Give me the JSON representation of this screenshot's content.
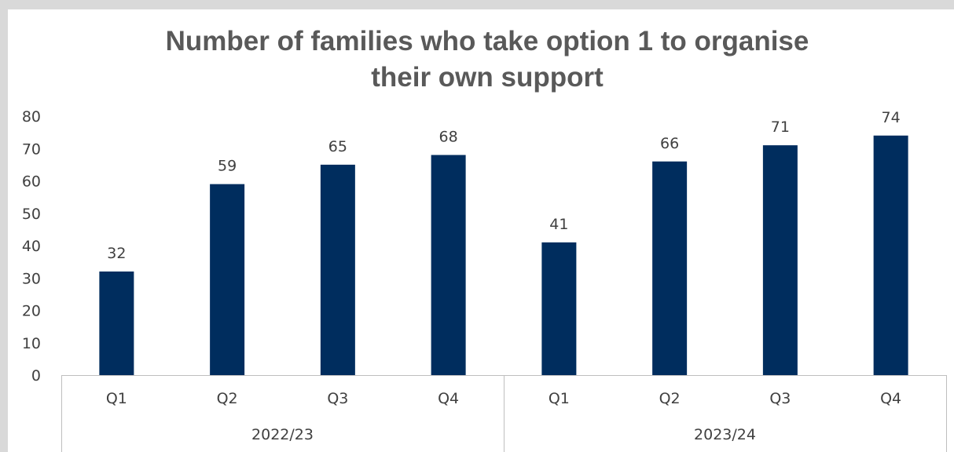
{
  "chart_data": {
    "type": "bar",
    "title_lines": [
      "Number of families who take option 1 to organise",
      "their own support"
    ],
    "groups": [
      {
        "label": "2022/23",
        "categories": [
          "Q1",
          "Q2",
          "Q3",
          "Q4"
        ],
        "values": [
          32,
          59,
          65,
          68
        ]
      },
      {
        "label": "2023/24",
        "categories": [
          "Q1",
          "Q2",
          "Q3",
          "Q4"
        ],
        "values": [
          41,
          66,
          71,
          74
        ]
      }
    ],
    "ylim": [
      0,
      80
    ],
    "yticks": [
      0,
      10,
      20,
      30,
      40,
      50,
      60,
      70,
      80
    ],
    "grid": false,
    "legend": "none",
    "bar_color": "#002d5e"
  }
}
